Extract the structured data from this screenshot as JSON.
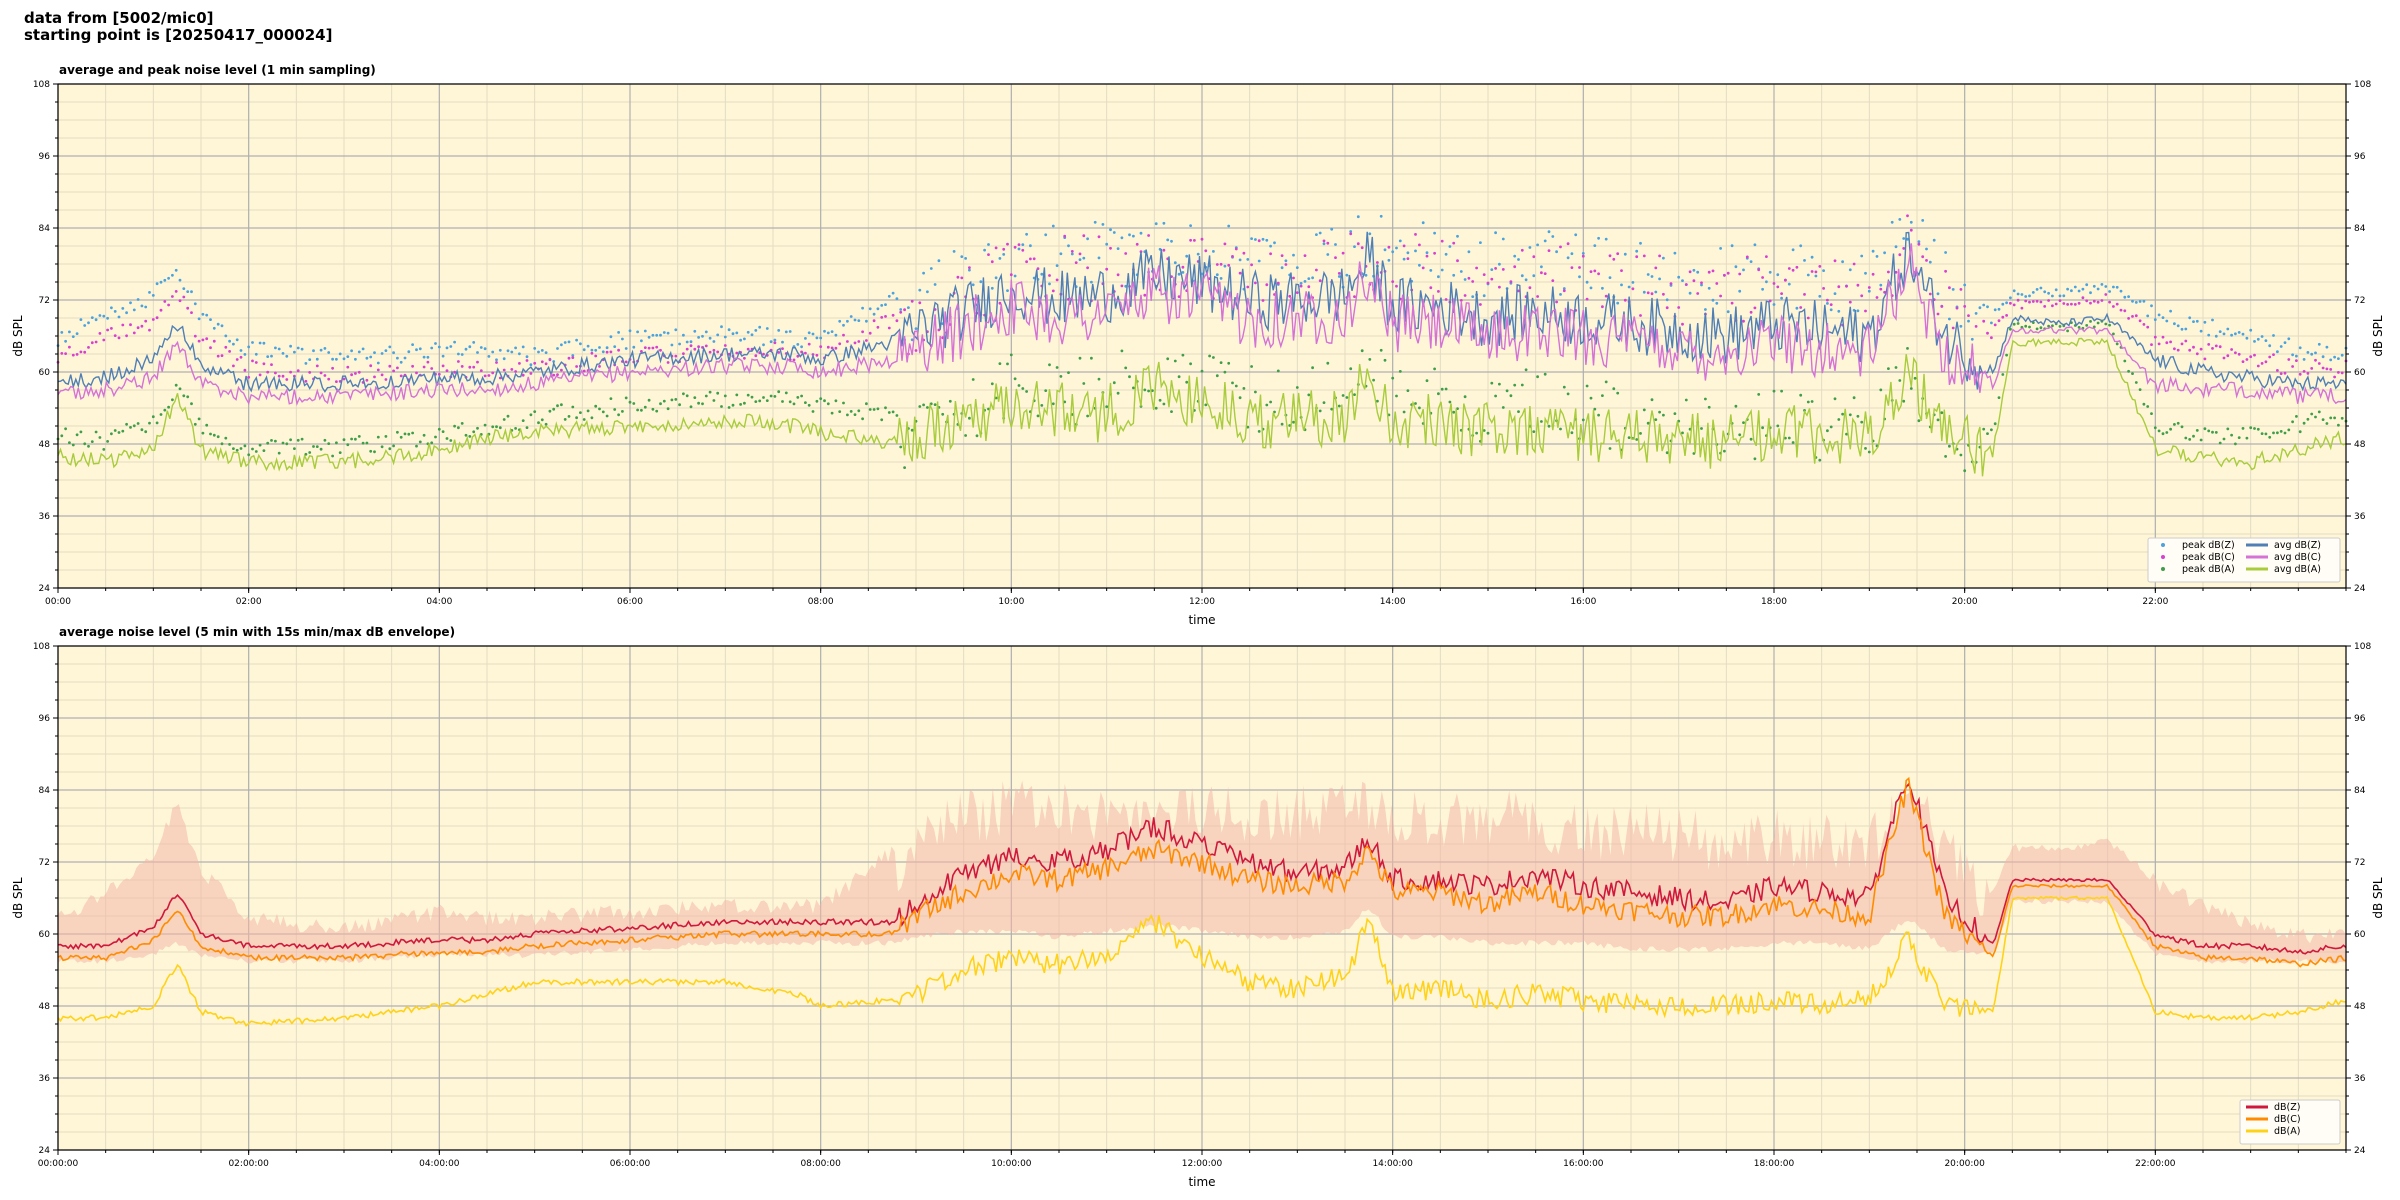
{
  "header": {
    "line1": "data from [5002/mic0]",
    "line2": "starting point is [20250417_000024]"
  },
  "style": {
    "plot_bg": "#fff6d8",
    "grid_major": "#b0b0b0",
    "grid_minor": "#e4dcc2",
    "zone_envelope": "#f2b7a8"
  },
  "chart_data": [
    {
      "type": "line",
      "title": "average and peak noise level (1 min sampling)",
      "xlabel": "time",
      "ylabel": "dB SPL",
      "ylim": [
        24,
        108
      ],
      "xlim": [
        0,
        24
      ],
      "y_ticks": [
        24,
        36,
        48,
        60,
        72,
        84,
        96,
        108
      ],
      "x_ticks": [
        0,
        2,
        4,
        6,
        8,
        10,
        12,
        14,
        16,
        18,
        20,
        22
      ],
      "x_tick_labels": [
        "00:00",
        "02:00",
        "04:00",
        "06:00",
        "08:00",
        "10:00",
        "12:00",
        "14:00",
        "16:00",
        "18:00",
        "20:00",
        "22:00"
      ],
      "grid": true,
      "legend_position": "bottom-right",
      "legend_columns": 2,
      "series": [
        {
          "name": "peak dB(Z)",
          "kind": "scatter",
          "color": "#4aa3df",
          "x": [
            0,
            0.5,
            1,
            1.25,
            1.5,
            2,
            3,
            4,
            4.5,
            5,
            6,
            7,
            7.75,
            8,
            8.75,
            9,
            9.5,
            10,
            10.5,
            11,
            11.5,
            12,
            12.5,
            13,
            13.5,
            13.75,
            14,
            14.5,
            15,
            15.5,
            16,
            16.5,
            17,
            17.5,
            18,
            18.5,
            19,
            19.4,
            19.8,
            20.3,
            20.5,
            21,
            21.5,
            22,
            22.5,
            23,
            23.5,
            24
          ],
          "y": [
            66,
            70,
            73,
            78,
            70,
            64,
            63,
            64,
            64,
            63,
            66,
            67,
            66,
            67,
            72,
            76,
            80,
            84,
            84,
            84,
            84,
            84,
            83,
            84,
            84,
            86,
            84,
            84,
            82,
            84,
            82,
            81,
            80,
            80,
            81,
            80,
            79,
            88,
            79,
            69,
            73,
            73,
            74,
            70,
            68,
            67,
            64,
            64
          ]
        },
        {
          "name": "peak dB(C)",
          "kind": "scatter",
          "color": "#d93fd0",
          "x": [
            0,
            0.5,
            1,
            1.25,
            1.5,
            2,
            3,
            4,
            4.5,
            5,
            6,
            7,
            7.75,
            8,
            8.75,
            9,
            9.5,
            10,
            10.5,
            11,
            11.5,
            12,
            12.5,
            13,
            13.5,
            13.75,
            14,
            14.5,
            15,
            15.5,
            16,
            16.5,
            17,
            17.5,
            18,
            18.5,
            19,
            19.4,
            19.8,
            20.3,
            20.5,
            21,
            21.5,
            22,
            22.5,
            23,
            23.5,
            24
          ],
          "y": [
            63,
            66,
            69,
            74,
            66,
            61,
            60,
            61,
            61,
            61,
            63,
            64,
            64,
            64,
            69,
            73,
            77,
            82,
            82,
            82,
            82,
            82,
            81,
            82,
            82,
            84,
            82,
            82,
            80,
            82,
            80,
            79,
            78,
            78,
            79,
            78,
            77,
            86,
            76,
            67,
            71,
            71,
            72,
            66,
            64,
            63,
            61,
            61
          ]
        },
        {
          "name": "peak dB(A)",
          "kind": "scatter",
          "color": "#3f9e4a",
          "x": [
            0,
            0.5,
            1,
            1.25,
            1.5,
            2,
            3,
            4,
            4.5,
            5,
            6,
            7,
            7.75,
            8,
            8.75,
            9,
            9.5,
            10,
            10.5,
            11,
            11.5,
            12,
            12.5,
            13,
            13.5,
            13.75,
            14,
            14.5,
            15,
            15.5,
            16,
            16.5,
            17,
            17.5,
            18,
            18.5,
            19,
            19.4,
            19.8,
            20.3,
            20.5,
            21,
            21.5,
            22,
            22.5,
            23,
            23.5,
            24
          ],
          "y": [
            50,
            49,
            52,
            58,
            51,
            48,
            48,
            50,
            51,
            53,
            55,
            56,
            56,
            55,
            53,
            54,
            58,
            63,
            61,
            62,
            64,
            62,
            60,
            60,
            61,
            66,
            60,
            60,
            58,
            60,
            58,
            57,
            56,
            55,
            56,
            55,
            56,
            64,
            56,
            50,
            68,
            67,
            68,
            51,
            50,
            50,
            52,
            53
          ]
        },
        {
          "name": "avg dB(Z)",
          "kind": "line",
          "color": "#4f7fb5",
          "x": [
            0,
            0.5,
            1,
            1.25,
            1.5,
            2,
            3,
            4,
            4.5,
            5,
            6,
            7,
            7.75,
            8,
            8.75,
            9,
            9.5,
            10,
            10.5,
            11,
            11.5,
            12,
            12.5,
            13,
            13.5,
            13.75,
            14,
            14.5,
            15,
            15.5,
            16,
            16.5,
            17,
            17.5,
            18,
            18.5,
            19,
            19.4,
            19.8,
            20.3,
            20.5,
            21,
            21.5,
            22,
            22.5,
            23,
            23.5,
            24
          ],
          "y": [
            58,
            59,
            62,
            68,
            61,
            58,
            58,
            59,
            59,
            60,
            62,
            63,
            63,
            62,
            65,
            67,
            70,
            74,
            72,
            73,
            76,
            75,
            72,
            72,
            73,
            79,
            71,
            71,
            69,
            70,
            69,
            68,
            67,
            66,
            68,
            67,
            66,
            80,
            66,
            60,
            69,
            68,
            69,
            62,
            60,
            59,
            58,
            58
          ]
        },
        {
          "name": "avg dB(C)",
          "kind": "line",
          "color": "#d472d6",
          "x": [
            0,
            0.5,
            1,
            1.25,
            1.5,
            2,
            3,
            4,
            4.5,
            5,
            6,
            7,
            7.75,
            8,
            8.75,
            9,
            9.5,
            10,
            10.5,
            11,
            11.5,
            12,
            12.5,
            13,
            13.5,
            13.75,
            14,
            14.5,
            15,
            15.5,
            16,
            16.5,
            17,
            17.5,
            18,
            18.5,
            19,
            19.4,
            19.8,
            20.3,
            20.5,
            21,
            21.5,
            22,
            22.5,
            23,
            23.5,
            24
          ],
          "y": [
            56,
            57,
            59,
            65,
            58,
            56,
            56,
            57,
            57,
            58,
            60,
            61,
            61,
            60,
            62,
            64,
            67,
            71,
            69,
            70,
            73,
            72,
            69,
            69,
            70,
            76,
            68,
            68,
            66,
            67,
            66,
            65,
            64,
            63,
            65,
            64,
            63,
            78,
            63,
            58,
            67,
            67,
            67,
            58,
            57,
            57,
            56,
            56
          ]
        },
        {
          "name": "avg dB(A)",
          "kind": "line",
          "color": "#a8cc3c",
          "x": [
            0,
            0.5,
            1,
            1.25,
            1.5,
            2,
            3,
            4,
            4.5,
            5,
            6,
            7,
            7.75,
            8,
            8.75,
            9,
            9.5,
            10,
            10.5,
            11,
            11.5,
            12,
            12.5,
            13,
            13.5,
            13.75,
            14,
            14.5,
            15,
            15.5,
            16,
            16.5,
            17,
            17.5,
            18,
            18.5,
            19,
            19.4,
            19.8,
            20.3,
            20.5,
            21,
            21.5,
            22,
            22.5,
            23,
            23.5,
            24
          ],
          "y": [
            46,
            45,
            47,
            56,
            47,
            45,
            45,
            47,
            49,
            50,
            51,
            52,
            51,
            50,
            48,
            49,
            52,
            55,
            54,
            53,
            57,
            55,
            52,
            52,
            53,
            60,
            52,
            52,
            50,
            51,
            50,
            49,
            49,
            48,
            50,
            49,
            49,
            61,
            49,
            47,
            65,
            65,
            65,
            47,
            46,
            45,
            47,
            49
          ]
        }
      ]
    },
    {
      "type": "line",
      "title": "average noise level (5 min with 15s min/max dB envelope)",
      "xlabel": "time",
      "ylabel": "dB SPL",
      "ylim": [
        24,
        108
      ],
      "xlim": [
        0,
        24
      ],
      "y_ticks": [
        24,
        36,
        48,
        60,
        72,
        84,
        96,
        108
      ],
      "x_ticks": [
        0,
        2,
        4,
        6,
        8,
        10,
        12,
        14,
        16,
        18,
        20,
        22
      ],
      "x_tick_labels": [
        "00:00:00",
        "02:00:00",
        "04:00:00",
        "06:00:00",
        "08:00:00",
        "10:00:00",
        "12:00:00",
        "14:00:00",
        "16:00:00",
        "18:00:00",
        "20:00:00",
        "22:00:00"
      ],
      "grid": true,
      "legend_position": "bottom-right",
      "legend_columns": 1,
      "envelope": {
        "x": [
          0,
          0.5,
          1,
          1.25,
          1.5,
          2,
          3,
          4,
          4.5,
          5,
          6,
          7,
          7.75,
          8,
          8.75,
          9,
          9.5,
          10,
          10.5,
          11,
          11.5,
          12,
          12.5,
          13,
          13.5,
          13.75,
          14,
          14.5,
          15,
          15.5,
          16,
          16.5,
          17,
          17.5,
          18,
          18.5,
          19,
          19.4,
          19.8,
          20.3,
          20.5,
          21,
          21.5,
          22,
          22.5,
          23,
          23.5,
          24
        ],
        "low": [
          55,
          55,
          56,
          58,
          56,
          55,
          55,
          56,
          56,
          56,
          57,
          58,
          58,
          58,
          58,
          59,
          60,
          60,
          59,
          60,
          61,
          60,
          59,
          59,
          60,
          64,
          59,
          59,
          58,
          58,
          58,
          57,
          57,
          57,
          58,
          58,
          57,
          62,
          57,
          56,
          65,
          65,
          65,
          56,
          55,
          55,
          55,
          55
        ],
        "high": [
          64,
          68,
          74,
          83,
          72,
          64,
          62,
          65,
          64,
          64,
          65,
          66,
          66,
          66,
          75,
          80,
          84,
          86,
          86,
          85,
          86,
          86,
          85,
          85,
          86,
          87,
          84,
          84,
          84,
          84,
          82,
          82,
          81,
          80,
          81,
          80,
          80,
          89,
          79,
          68,
          75,
          75,
          76,
          70,
          66,
          63,
          61,
          61
        ]
      },
      "series": [
        {
          "name": "dB(Z)",
          "kind": "line",
          "color": "#d0183c",
          "x": [
            0,
            0.5,
            1,
            1.25,
            1.5,
            2,
            3,
            4,
            4.5,
            5,
            6,
            7,
            7.75,
            8,
            8.75,
            9,
            9.5,
            10,
            10.5,
            11,
            11.5,
            12,
            12.5,
            13,
            13.5,
            13.75,
            14,
            14.5,
            15,
            15.5,
            16,
            16.5,
            17,
            17.5,
            18,
            18.5,
            19,
            19.4,
            19.8,
            20.3,
            20.5,
            21,
            21.5,
            22,
            22.5,
            23,
            23.5,
            24
          ],
          "y": [
            58,
            58,
            61,
            67,
            60,
            58,
            58,
            59,
            59,
            60,
            61,
            62,
            62,
            62,
            62,
            65,
            70,
            73,
            72,
            74,
            78,
            75,
            72,
            70,
            71,
            76,
            69,
            69,
            68,
            70,
            68,
            67,
            66,
            65,
            68,
            67,
            66,
            87,
            66,
            58,
            69,
            69,
            69,
            60,
            58,
            58,
            57,
            58
          ]
        },
        {
          "name": "dB(C)",
          "kind": "line",
          "color": "#ff8c00",
          "x": [
            0,
            0.5,
            1,
            1.25,
            1.5,
            2,
            3,
            4,
            4.5,
            5,
            6,
            7,
            7.75,
            8,
            8.75,
            9,
            9.5,
            10,
            10.5,
            11,
            11.5,
            12,
            12.5,
            13,
            13.5,
            13.75,
            14,
            14.5,
            15,
            15.5,
            16,
            16.5,
            17,
            17.5,
            18,
            18.5,
            19,
            19.4,
            19.8,
            20.3,
            20.5,
            21,
            21.5,
            22,
            22.5,
            23,
            23.5,
            24
          ],
          "y": [
            56,
            56,
            59,
            64,
            58,
            56,
            56,
            57,
            57,
            58,
            59,
            60,
            60,
            60,
            60,
            63,
            67,
            70,
            69,
            71,
            74,
            72,
            69,
            68,
            69,
            74,
            67,
            67,
            65,
            67,
            65,
            64,
            63,
            63,
            65,
            64,
            63,
            85,
            63,
            56,
            68,
            68,
            68,
            58,
            56,
            56,
            55,
            56
          ]
        },
        {
          "name": "dB(A)",
          "kind": "line",
          "color": "#ffd21a",
          "x": [
            0,
            0.5,
            1,
            1.25,
            1.5,
            2,
            3,
            4,
            4.5,
            5,
            6,
            7,
            7.75,
            8,
            8.75,
            9,
            9.5,
            10,
            10.5,
            11,
            11.5,
            12,
            12.5,
            13,
            13.5,
            13.75,
            14,
            14.5,
            15,
            15.5,
            16,
            16.5,
            17,
            17.5,
            18,
            18.5,
            19,
            19.4,
            19.8,
            20.3,
            20.5,
            21,
            21.5,
            22,
            22.5,
            23,
            23.5,
            24
          ],
          "y": [
            46,
            46,
            48,
            55,
            47,
            45,
            46,
            48,
            50,
            52,
            52,
            52,
            50,
            48,
            49,
            50,
            54,
            56,
            55,
            57,
            62,
            56,
            52,
            51,
            53,
            62,
            50,
            51,
            49,
            50,
            49,
            48,
            48,
            48,
            49,
            48,
            49,
            59,
            48,
            47,
            66,
            66,
            66,
            47,
            46,
            46,
            47,
            49
          ]
        }
      ]
    }
  ]
}
